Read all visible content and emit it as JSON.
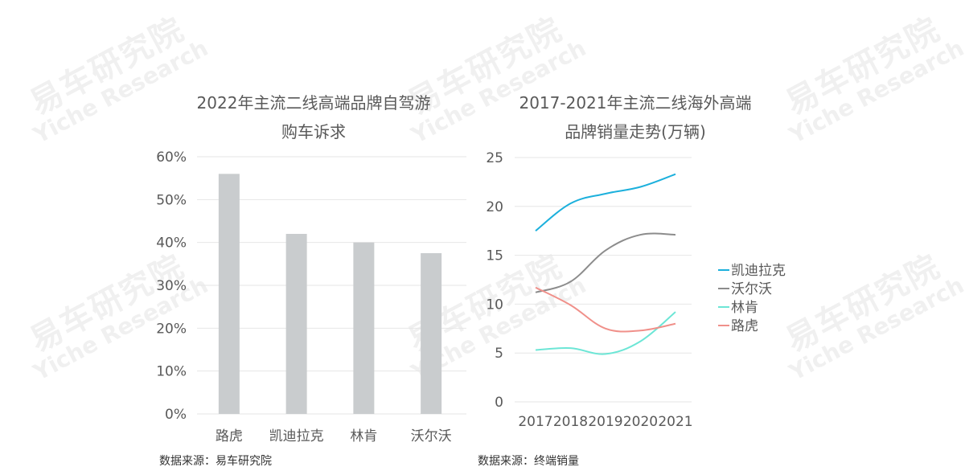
{
  "watermark": {
    "cn": "易车研究院",
    "en": "Yiche Research"
  },
  "left": {
    "title_line1": "2022年主流二线高端品牌自驾游",
    "title_line2": "购车诉求",
    "source": "数据来源：易车研究院"
  },
  "right": {
    "title_line1": "2017-2021年主流二线海外高端",
    "title_line2": "品牌销量走势(万辆)",
    "source": "数据来源：终端销量"
  },
  "colors": {
    "bar": "#c9ccce",
    "grid": "#e6e6e6",
    "text": "#595959"
  },
  "chart_data": [
    {
      "type": "bar",
      "title": "2022年主流二线高端品牌自驾游购车诉求",
      "categories": [
        "路虎",
        "凯迪拉克",
        "林肯",
        "沃尔沃"
      ],
      "values": [
        0.56,
        0.42,
        0.4,
        0.375
      ],
      "yticks": [
        "0%",
        "10%",
        "20%",
        "30%",
        "40%",
        "50%",
        "60%"
      ],
      "ylim": [
        0,
        0.6
      ],
      "grid": true
    },
    {
      "type": "line",
      "title": "2017-2021年主流二线海外高端品牌销量走势(万辆)",
      "x": [
        "2017",
        "2018",
        "2019",
        "2020",
        "2021"
      ],
      "yticks": [
        "0",
        "5",
        "10",
        "15",
        "20",
        "25"
      ],
      "ylim": [
        0,
        25
      ],
      "grid": true,
      "legend": "right",
      "series": [
        {
          "name": "凯迪拉克",
          "color": "#1cb0dc",
          "values": [
            17.5,
            20.3,
            21.3,
            22.0,
            23.3
          ]
        },
        {
          "name": "沃尔沃",
          "color": "#8c8c8c",
          "values": [
            11.2,
            12.3,
            15.5,
            17.1,
            17.1
          ]
        },
        {
          "name": "林肯",
          "color": "#6de6d6",
          "values": [
            5.3,
            5.5,
            4.9,
            6.2,
            9.2
          ]
        },
        {
          "name": "路虎",
          "color": "#f0908a",
          "values": [
            11.7,
            9.9,
            7.5,
            7.3,
            8.0
          ]
        }
      ]
    }
  ]
}
